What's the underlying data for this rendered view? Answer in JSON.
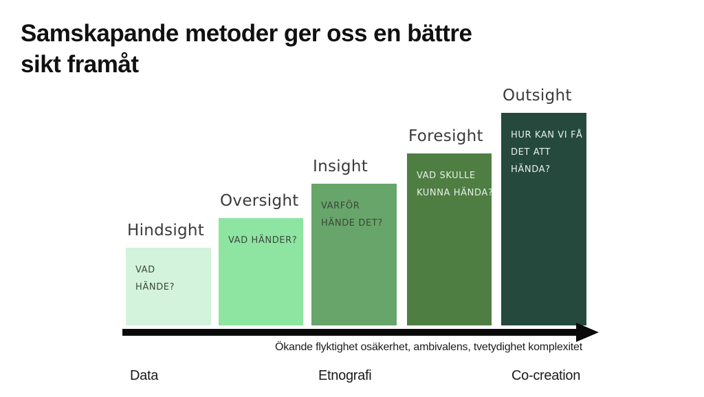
{
  "slide": {
    "title_line1": "Samskapande metoder ger oss en bättre",
    "title_line2": "sikt framåt"
  },
  "colors": {
    "background": "#ffffff",
    "title_text": "#111111",
    "bar_label_text": "#3a3a3a",
    "bar_dark_text": "#3a473d",
    "bar_light_text": "#e8eee9",
    "arrow": "#0a0a0a",
    "bar_fills": [
      "#d3f3dc",
      "#8de5a1",
      "#68a56a",
      "#4e7e42",
      "#254a3d"
    ]
  },
  "chart": {
    "bars": [
      {
        "label": "Hindsight",
        "lines": [
          "VAD",
          "HÄNDE?"
        ],
        "color": "#d3f3dc"
      },
      {
        "label": "Oversight",
        "lines": [
          "VAD HÄNDER?"
        ],
        "color": "#8de5a1"
      },
      {
        "label": "Insight",
        "lines": [
          "VARFÖR",
          "HÄNDE DET?"
        ],
        "color": "#68a56a"
      },
      {
        "label": "Foresight",
        "lines": [
          "VAD SKULLE",
          "KUNNA HÄNDA?"
        ],
        "color": "#4e7e42"
      },
      {
        "label": "Outsight",
        "lines": [
          "HUR KAN VI FÅ",
          "DET ATT",
          "HÄNDA?"
        ],
        "color": "#254a3d"
      }
    ],
    "axis_caption": "Ökande flyktighet osäkerhet, ambivalens, tvetydighet komplexitet",
    "x_labels": [
      "Data",
      "Etnografi",
      "Co-creation"
    ]
  },
  "chart_data": {
    "type": "bar",
    "title": "Samskapande metoder ger oss en bättre sikt framåt",
    "categories": [
      "Hindsight",
      "Oversight",
      "Insight",
      "Foresight",
      "Outsight"
    ],
    "values": [
      113,
      156,
      206,
      250,
      309
    ],
    "values_unit": "px (relative height, ascending steps)",
    "bar_questions": [
      "VAD HÄNDE?",
      "VAD HÄNDER?",
      "VARFÖR HÄNDE DET?",
      "VAD SKULLE KUNNA HÄNDA?",
      "HUR KAN VI FÅ DET ATT HÄNDA?"
    ],
    "bar_colors": [
      "#d3f3dc",
      "#8de5a1",
      "#68a56a",
      "#4e7e42",
      "#254a3d"
    ],
    "xlabel": "Ökande flyktighet osäkerhet, ambivalens, tvetydighet komplexitet",
    "x_group_labels": [
      "Data",
      "Etnografi",
      "Co-creation"
    ],
    "ylabel": "",
    "grid": false,
    "legend": false,
    "axis_style": "single bottom arrow pointing right"
  }
}
